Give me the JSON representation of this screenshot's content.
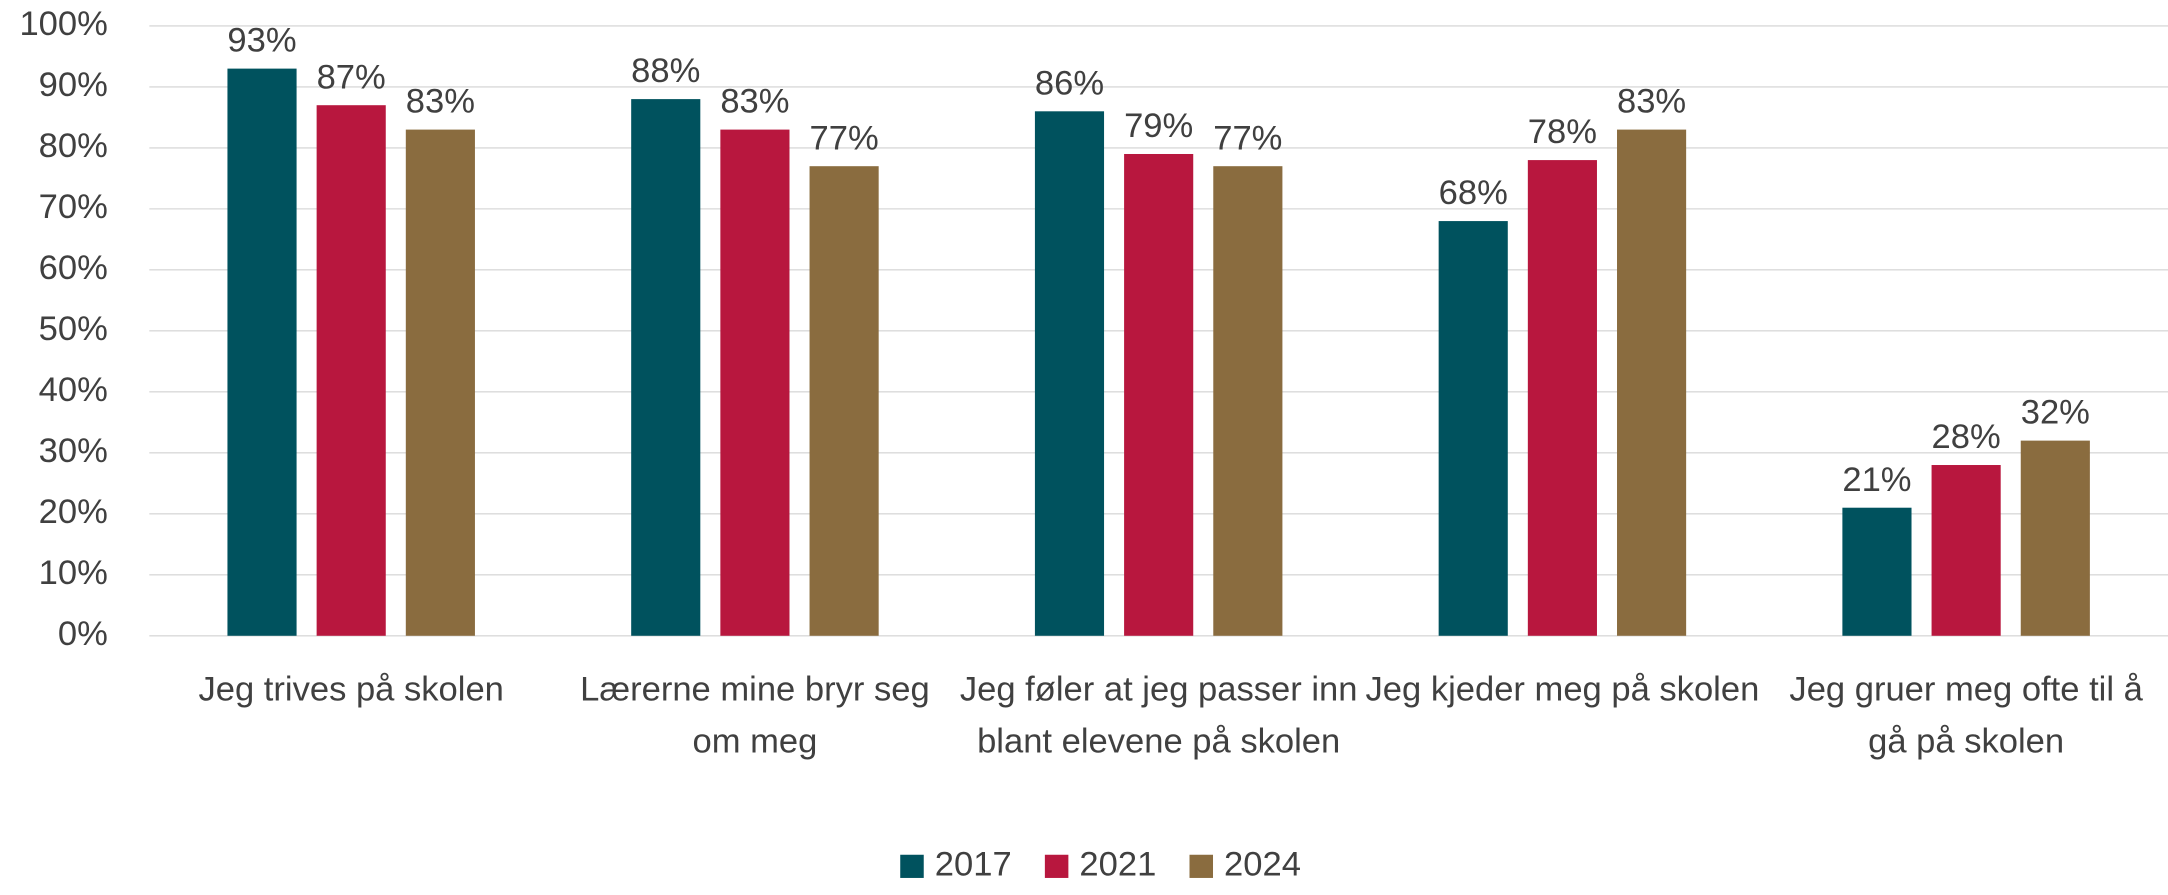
{
  "chart_data": {
    "type": "bar",
    "categories": [
      "Jeg trives på skolen",
      "Lærerne mine bryr seg om meg",
      "Jeg føler at jeg passer inn blant elevene på skolen",
      "Jeg kjeder meg på skolen",
      "Jeg gruer meg ofte til å gå på skolen"
    ],
    "series": [
      {
        "name": "2017",
        "color": "#00525e",
        "values": [
          93,
          88,
          86,
          68,
          21
        ],
        "value_labels": [
          "93%",
          "88%",
          "86%",
          "68%",
          "21%"
        ]
      },
      {
        "name": "2021",
        "color": "#b8173e",
        "values": [
          87,
          83,
          79,
          78,
          28
        ],
        "value_labels": [
          "87%",
          "83%",
          "79%",
          "78%",
          "28%"
        ]
      },
      {
        "name": "2024",
        "color": "#8a6c3f",
        "values": [
          83,
          77,
          77,
          83,
          32
        ],
        "value_labels": [
          "83%",
          "77%",
          "77%",
          "83%",
          "32%"
        ]
      }
    ],
    "ylim": [
      0,
      100
    ],
    "yticks": [
      {
        "value": 0,
        "label": "0%"
      },
      {
        "value": 10,
        "label": "10%"
      },
      {
        "value": 20,
        "label": "20%"
      },
      {
        "value": 30,
        "label": "30%"
      },
      {
        "value": 40,
        "label": "40%"
      },
      {
        "value": 50,
        "label": "50%"
      },
      {
        "value": 60,
        "label": "60%"
      },
      {
        "value": 70,
        "label": "70%"
      },
      {
        "value": 80,
        "label": "80%"
      },
      {
        "value": 90,
        "label": "90%"
      },
      {
        "value": 100,
        "label": "100%"
      }
    ],
    "grid": true,
    "legend": "bottom"
  }
}
